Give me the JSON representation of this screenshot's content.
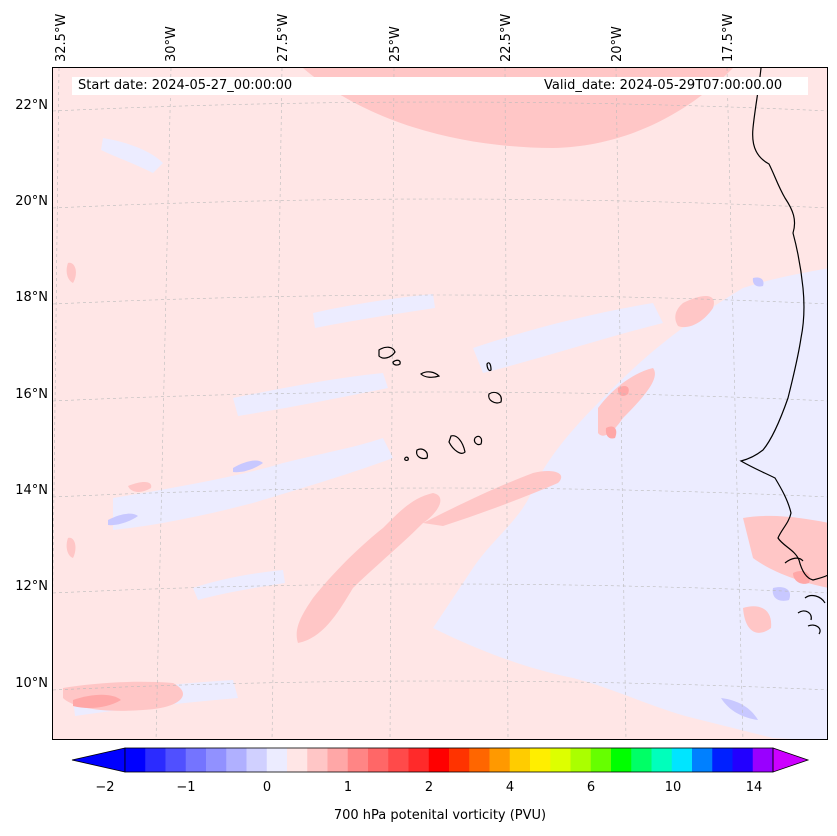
{
  "map": {
    "start_date": "Start date: 2024-05-27_00:00:00",
    "valid_date": "Valid_date: 2024-05-29T07:00:00.00",
    "longitude_labels": [
      "32.5°W",
      "30°W",
      "27.5°W",
      "25°W",
      "22.5°W",
      "20°W",
      "17.5°W"
    ],
    "latitude_labels": [
      "22°N",
      "20°N",
      "18°N",
      "16°N",
      "14°N",
      "12°N",
      "10°N"
    ],
    "background_color": "#ffe6e6"
  },
  "colorbar": {
    "title": "700 hPa potenital vorticity (PVU)",
    "tick_labels": [
      "−2",
      "−1",
      "0",
      "1",
      "2",
      "4",
      "6",
      "10",
      "14"
    ],
    "colors": [
      "#0000ff",
      "#2b2bff",
      "#5050ff",
      "#7474ff",
      "#9191ff",
      "#b0b0ff",
      "#d0d0ff",
      "#ececff",
      "#ffe6e6",
      "#ffc6c6",
      "#ffa7a7",
      "#ff8585",
      "#ff6767",
      "#ff4a4a",
      "#ff2a2a",
      "#ff0000",
      "#ff3300",
      "#ff6600",
      "#ff9900",
      "#ffcc00",
      "#ffee00",
      "#ddff00",
      "#aaff00",
      "#66ff00",
      "#00ff00",
      "#00ff66",
      "#00ffbb",
      "#00e5ff",
      "#0080ff",
      "#0020ff",
      "#2200ff",
      "#9900ff"
    ],
    "extend_low_color": "#0000ff",
    "extend_high_color": "#cc00ff"
  }
}
